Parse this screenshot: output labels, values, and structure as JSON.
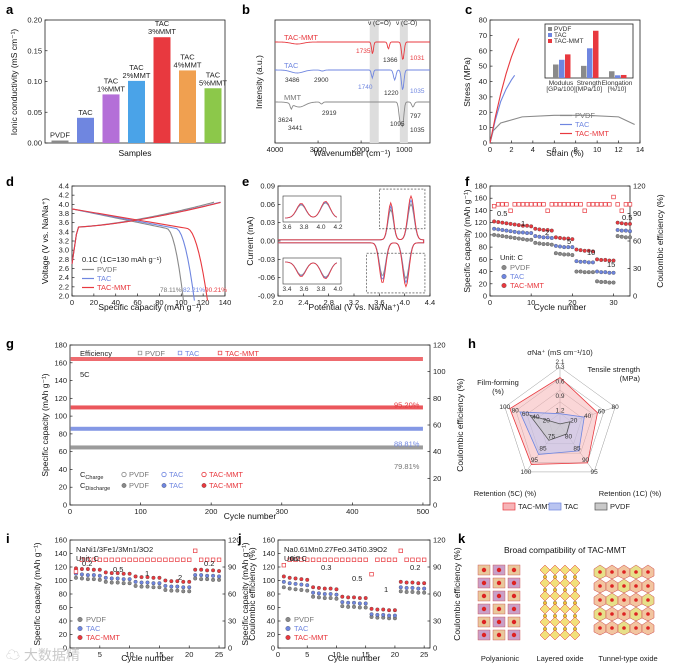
{
  "colors": {
    "pvdf": "#8a8a8a",
    "tac": "#6f86e0",
    "tacmmt": "#e8393f",
    "mmt": "#8a8a8a"
  },
  "panels": [
    "a",
    "b",
    "c",
    "d",
    "e",
    "f",
    "g",
    "h",
    "i",
    "j",
    "k"
  ],
  "chart_data": [
    {
      "id": "a",
      "type": "bar",
      "ylabel": "Ionic conductivity (mS cm⁻¹)",
      "xlabel": "Samples",
      "categories": [
        "PVDF",
        "TAC",
        "TAC 1%MMT",
        "TAC 2%MMT",
        "TAC 3%MMT",
        "TAC 4%MMT",
        "TAC 5%MMT"
      ],
      "bar_labels": [
        [
          "PVDF"
        ],
        [
          "TAC"
        ],
        [
          "TAC",
          "1%MMT"
        ],
        [
          "TAC",
          "2%MMT"
        ],
        [
          "TAC",
          "3%MMT"
        ],
        [
          "TAC",
          "4%MMT"
        ],
        [
          "TAC",
          "5%MMT"
        ]
      ],
      "values": [
        0.004,
        0.041,
        0.079,
        0.101,
        0.172,
        0.118,
        0.089
      ],
      "bar_colors": [
        "#8a8a8a",
        "#6f86e0",
        "#b46fd8",
        "#4aa3e8",
        "#e8393f",
        "#f0a050",
        "#8cc84a"
      ],
      "yticks": [
        "0.00",
        "0.05",
        "0.10",
        "0.15",
        "0.20"
      ],
      "ylim": [
        0,
        0.2
      ]
    },
    {
      "id": "b",
      "type": "line",
      "xlabel": "Wavenumber (cm⁻¹)",
      "ylabel": "Intensity (a.u.)",
      "xticks": [
        "4000",
        "3000",
        "2000",
        "1000"
      ],
      "series_names": [
        "TAC-MMT",
        "TAC",
        "MMT"
      ],
      "annotations": [
        "ν (C=O)",
        "ν (C-O)",
        "1735",
        "1366",
        "1031",
        "1740",
        "1220",
        "1035",
        "3486",
        "2900",
        "3624",
        "3441",
        "2919",
        "1095",
        "797",
        "1035"
      ]
    },
    {
      "id": "c",
      "type": "line",
      "xlabel": "Strain (%)",
      "ylabel": "Stress (MPa)",
      "xticks": [
        "0",
        "2",
        "4",
        "6",
        "8",
        "10",
        "12",
        "14"
      ],
      "yticks": [
        "0",
        "10",
        "20",
        "30",
        "40",
        "50",
        "60",
        "70",
        "80"
      ],
      "series": [
        {
          "name": "PVDF",
          "x": [
            0,
            0.3,
            1,
            3,
            6,
            9,
            12,
            13.5
          ],
          "y": [
            0,
            8,
            13,
            17,
            18,
            18,
            17,
            12
          ]
        },
        {
          "name": "TAC",
          "x": [
            0,
            0.5,
            1,
            1.5,
            2,
            2.3
          ],
          "y": [
            0,
            15,
            27,
            35,
            41,
            44
          ]
        },
        {
          "name": "TAC-MMT",
          "x": [
            0,
            0.5,
            1,
            1.5,
            2,
            2.5,
            2.7
          ],
          "y": [
            0,
            17,
            32,
            45,
            56,
            65,
            68
          ]
        }
      ],
      "inset": {
        "categories": [
          "Modulus [GPa/100]",
          "Strength [MPa/10]",
          "Elongation [%/10]"
        ],
        "category_lines": [
          [
            "Modulus",
            "[GPa/100]"
          ],
          [
            "Strength",
            "[MPa/10]"
          ],
          [
            "Elongation",
            "[%/10]"
          ]
        ],
        "series": [
          {
            "name": "PVDF",
            "values": [
              200,
              180,
              100
            ]
          },
          {
            "name": "TAC",
            "values": [
              270,
              440,
              40
            ]
          },
          {
            "name": "TAC-MMT",
            "values": [
              350,
              700,
              45
            ]
          }
        ]
      }
    },
    {
      "id": "d",
      "type": "line",
      "xlabel": "Specific capacity (mAh g⁻¹)",
      "ylabel": "Voltage (V vs. Na/Na⁺)",
      "xticks": [
        "0",
        "20",
        "40",
        "60",
        "80",
        "100",
        "120",
        "140"
      ],
      "yticks": [
        "2.0",
        "2.2",
        "2.4",
        "2.6",
        "2.8",
        "3.0",
        "3.2",
        "3.4",
        "3.6",
        "3.8",
        "4.0",
        "4.2",
        "4.4"
      ],
      "note": "0.1C (1C=130 mAh g⁻¹)",
      "series": [
        {
          "name": "PVDF",
          "discharge_capacity": 102
        },
        {
          "name": "TAC",
          "discharge_capacity": 112
        },
        {
          "name": "TAC-MMT",
          "discharge_capacity": 124
        }
      ],
      "efficiencies": [
        "78.11%",
        "82.21%",
        "90.21%"
      ]
    },
    {
      "id": "e",
      "type": "line",
      "xlabel": "Potential (V vs. Na/Na⁺)",
      "ylabel": "Current (mA)",
      "xticks": [
        "2.0",
        "2.4",
        "2.8",
        "3.2",
        "3.6",
        "4.0",
        "4.4"
      ],
      "yticks": [
        "-0.09",
        "-0.06",
        "-0.03",
        "0.00",
        "0.03",
        "0.06",
        "0.09"
      ],
      "inset_ticks_top": [
        "3.6",
        "3.8",
        "4.0",
        "4.2"
      ],
      "inset_ticks_bottom": [
        "3.4",
        "3.6",
        "3.8",
        "4.0"
      ]
    },
    {
      "id": "f",
      "type": "scatter",
      "xlabel": "Cycle number",
      "ylabel": "Specific capacity (mAh g⁻¹)",
      "y2label": "Coulombic efficiency (%)",
      "xticks": [
        "0",
        "10",
        "20",
        "30"
      ],
      "yticks": [
        "0",
        "20",
        "40",
        "60",
        "80",
        "100",
        "120",
        "140",
        "160",
        "180"
      ],
      "y2ticks": [
        "0",
        "30",
        "60",
        "90",
        "120"
      ],
      "unit": "Unit: C",
      "rates": [
        "0.5",
        "1",
        "2",
        "5",
        "10",
        "15",
        "0.5"
      ],
      "series": [
        {
          "name": "PVDF",
          "values": [
            100,
            99,
            98,
            97,
            96,
            95,
            94,
            93,
            92,
            92,
            87,
            86,
            85,
            85,
            84,
            70,
            69,
            68,
            68,
            67,
            40,
            40,
            39,
            39,
            39,
            24,
            23,
            23,
            22,
            22,
            98,
            97,
            96,
            96
          ]
        },
        {
          "name": "TAC",
          "values": [
            110,
            109,
            108,
            107,
            106,
            105,
            104,
            104,
            103,
            103,
            98,
            97,
            96,
            96,
            95,
            82,
            81,
            80,
            80,
            80,
            57,
            56,
            56,
            55,
            55,
            40,
            39,
            39,
            38,
            38,
            108,
            107,
            107,
            106
          ]
        },
        {
          "name": "TAC-MMT",
          "values": [
            122,
            121,
            120,
            119,
            118,
            117,
            116,
            115,
            115,
            114,
            110,
            109,
            108,
            108,
            107,
            96,
            95,
            94,
            94,
            93,
            76,
            75,
            74,
            74,
            73,
            60,
            59,
            59,
            58,
            58,
            120,
            119,
            118,
            118
          ]
        }
      ]
    },
    {
      "id": "g",
      "type": "line",
      "xlabel": "Cycle number",
      "ylabel": "Specific capacity (mAh g⁻¹)",
      "y2label": "Coulombic efficiency (%)",
      "xticks": [
        "0",
        "100",
        "200",
        "300",
        "400",
        "500"
      ],
      "yticks": [
        "0",
        "20",
        "40",
        "60",
        "80",
        "100",
        "120",
        "140",
        "160",
        "180"
      ],
      "y2ticks": [
        "0",
        "20",
        "40",
        "60",
        "80",
        "100",
        "120"
      ],
      "rate": "5C",
      "efficiency_label": "Efficiency",
      "charge_label": "C",
      "charge_sub": "Charge",
      "discharge_label": "C",
      "discharge_sub": "Discharge",
      "series": [
        {
          "name": "PVDF",
          "start": 65,
          "end": 52,
          "retention": "79.81%"
        },
        {
          "name": "TAC",
          "start": 86,
          "end": 77,
          "retention": "88.81%"
        },
        {
          "name": "TAC-MMT",
          "start": 110,
          "end": 105,
          "retention": "95.20%"
        }
      ]
    },
    {
      "id": "h",
      "type": "radar",
      "axes": [
        {
          "name": "σNa⁺ (mS cm⁻¹/10)",
          "ticks": [
            "1.2",
            "0.9",
            "0.6",
            "0.3"
          ]
        },
        {
          "name": "Tensile strength (MPa)",
          "ticks": [
            "20",
            "40",
            "60",
            "80"
          ]
        },
        {
          "name": "Retention (1C) (%)",
          "ticks": [
            "80",
            "85",
            "90",
            "95"
          ]
        },
        {
          "name": "Retention (5C) (%)",
          "ticks": [
            "75",
            "85",
            "95",
            "100"
          ]
        },
        {
          "name": "Film-forming (%)",
          "ticks": [
            "20",
            "40",
            "60",
            "80",
            "100"
          ]
        }
      ],
      "top_value": "2.1",
      "series": [
        {
          "name": "TAC-MMT",
          "values": [
            1.72,
            68,
            95.2,
            95.2,
            100
          ]
        },
        {
          "name": "TAC",
          "values": [
            0.41,
            44,
            88.8,
            88.8,
            80
          ]
        },
        {
          "name": "PVDF",
          "values": [
            0.04,
            18,
            79.8,
            79.8,
            60
          ]
        }
      ]
    },
    {
      "id": "i",
      "type": "scatter",
      "material": "NaNi1/3Fe1/3Mn1/3O2",
      "unit": "Unit: C",
      "xlabel": "Cycle number",
      "ylabel": "Specific capacity (mAh g⁻¹)",
      "y2label": "Coulombic efficiency (%)",
      "xticks": [
        "0",
        "5",
        "10",
        "15",
        "20",
        "25"
      ],
      "yticks": [
        "0",
        "20",
        "40",
        "60",
        "80",
        "100",
        "120",
        "140",
        "160"
      ],
      "y2ticks": [
        "0",
        "30",
        "60",
        "90",
        "120"
      ],
      "rates": [
        "0.2",
        "0.5",
        "1",
        "2",
        "0.2"
      ],
      "series": [
        {
          "name": "PVDF",
          "values": [
            104,
            103,
            102,
            102,
            101,
            98,
            97,
            97,
            96,
            96,
            92,
            91,
            91,
            90,
            90,
            86,
            85,
            85,
            84,
            84,
            103,
            102,
            102,
            101,
            101
          ]
        },
        {
          "name": "TAC",
          "values": [
            110,
            109,
            108,
            108,
            107,
            104,
            103,
            103,
            102,
            102,
            98,
            97,
            97,
            96,
            96,
            92,
            91,
            91,
            90,
            90,
            108,
            108,
            107,
            107,
            106
          ]
        },
        {
          "name": "TAC-MMT",
          "values": [
            118,
            117,
            117,
            116,
            116,
            112,
            111,
            111,
            110,
            110,
            106,
            105,
            105,
            104,
            104,
            100,
            99,
            99,
            98,
            98,
            116,
            116,
            115,
            115,
            114
          ]
        }
      ]
    },
    {
      "id": "j",
      "type": "scatter",
      "material": "Na0.61Mn0.27Fe0.34Ti0.39O2",
      "unit": "Unit: C",
      "xlabel": "Cycle number",
      "ylabel": "Specific capacity (mAh g⁻¹)",
      "y2label": "Coulombic efficiency (%)",
      "xticks": [
        "0",
        "5",
        "10",
        "15",
        "20",
        "25"
      ],
      "yticks": [
        "0",
        "20",
        "40",
        "60",
        "80",
        "100",
        "120",
        "140",
        "160"
      ],
      "y2ticks": [
        "0",
        "30",
        "60",
        "90",
        "120"
      ],
      "rates": [
        "0.2",
        "0.3",
        "0.5",
        "1",
        "0.2"
      ],
      "series": [
        {
          "name": "PVDF",
          "values": [
            90,
            88,
            87,
            86,
            85,
            76,
            75,
            74,
            74,
            73,
            62,
            61,
            61,
            60,
            60,
            46,
            45,
            45,
            44,
            44,
            84,
            83,
            83,
            82,
            82
          ]
        },
        {
          "name": "TAC",
          "values": [
            98,
            96,
            95,
            94,
            93,
            82,
            81,
            80,
            80,
            79,
            68,
            67,
            67,
            66,
            66,
            50,
            49,
            49,
            48,
            48,
            90,
            89,
            89,
            88,
            88
          ]
        },
        {
          "name": "TAC-MMT",
          "values": [
            106,
            104,
            103,
            102,
            101,
            90,
            89,
            88,
            88,
            87,
            76,
            75,
            75,
            74,
            74,
            58,
            57,
            57,
            56,
            56,
            98,
            97,
            97,
            96,
            96
          ]
        }
      ]
    }
  ],
  "k": {
    "title": "Broad compatibility of TAC-MMT",
    "labels": [
      "Polyanionic",
      "Layered oxide",
      "Tunnel-type oxide"
    ]
  },
  "watermark": "大数据精"
}
